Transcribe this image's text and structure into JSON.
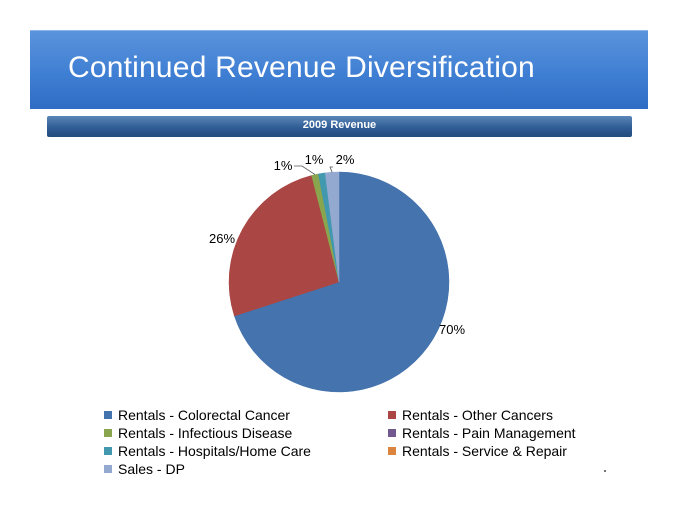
{
  "slide": {
    "title": "Continued Revenue Diversification",
    "subtitle": "2009 Revenue"
  },
  "colors": {
    "title_band": "#3f7fd3",
    "subtitle_band": "#2f5d95"
  },
  "chart_data": {
    "type": "pie",
    "title": "2009 Revenue",
    "legend_position": "bottom",
    "slices": [
      {
        "label": "Rentals - Colorectal Cancer",
        "value": 70,
        "display": "70%",
        "color": "#4573ad"
      },
      {
        "label": "Rentals - Other Cancers",
        "value": 26,
        "display": "26%",
        "color": "#aa4643"
      },
      {
        "label": "Rentals - Infectious Disease",
        "value": 1,
        "display": "1%",
        "color": "#89a54e"
      },
      {
        "label": "Rentals - Pain Management",
        "value": 0,
        "display": "",
        "color": "#71588f"
      },
      {
        "label": "Rentals - Hospitals/Home Care",
        "value": 1,
        "display": "1%",
        "color": "#4198af"
      },
      {
        "label": "Rentals - Service & Repair",
        "value": 0,
        "display": "",
        "color": "#db843d"
      },
      {
        "label": "Sales - DP",
        "value": 2,
        "display": "2%",
        "color": "#93a9cf"
      }
    ]
  }
}
